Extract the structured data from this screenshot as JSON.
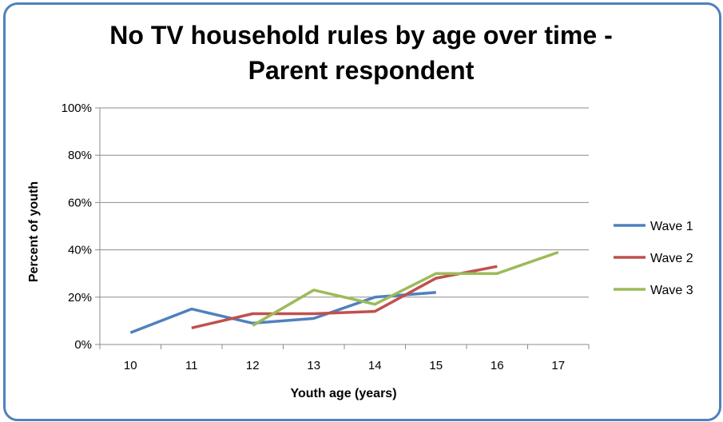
{
  "chart_data": {
    "type": "line",
    "title_line1": "No TV household rules by age over time -",
    "title_line2": "Parent respondent",
    "xlabel": "Youth age (years)",
    "ylabel": "Percent of youth",
    "categories": [
      "10",
      "11",
      "12",
      "13",
      "14",
      "15",
      "16",
      "17"
    ],
    "y_ticks": [
      "0%",
      "20%",
      "40%",
      "60%",
      "80%",
      "100%"
    ],
    "ylim": [
      0,
      100
    ],
    "grid": "horizontal",
    "legend_position": "right",
    "series": [
      {
        "name": "Wave 1",
        "color": "#4f81bd",
        "values": [
          5,
          15,
          9,
          11,
          20,
          22,
          null,
          null
        ]
      },
      {
        "name": "Wave 2",
        "color": "#c0504d",
        "values": [
          null,
          7,
          13,
          13,
          14,
          28,
          33,
          null
        ]
      },
      {
        "name": "Wave 3",
        "color": "#9bbb59",
        "values": [
          null,
          null,
          8,
          23,
          17,
          30,
          30,
          39
        ]
      }
    ]
  }
}
